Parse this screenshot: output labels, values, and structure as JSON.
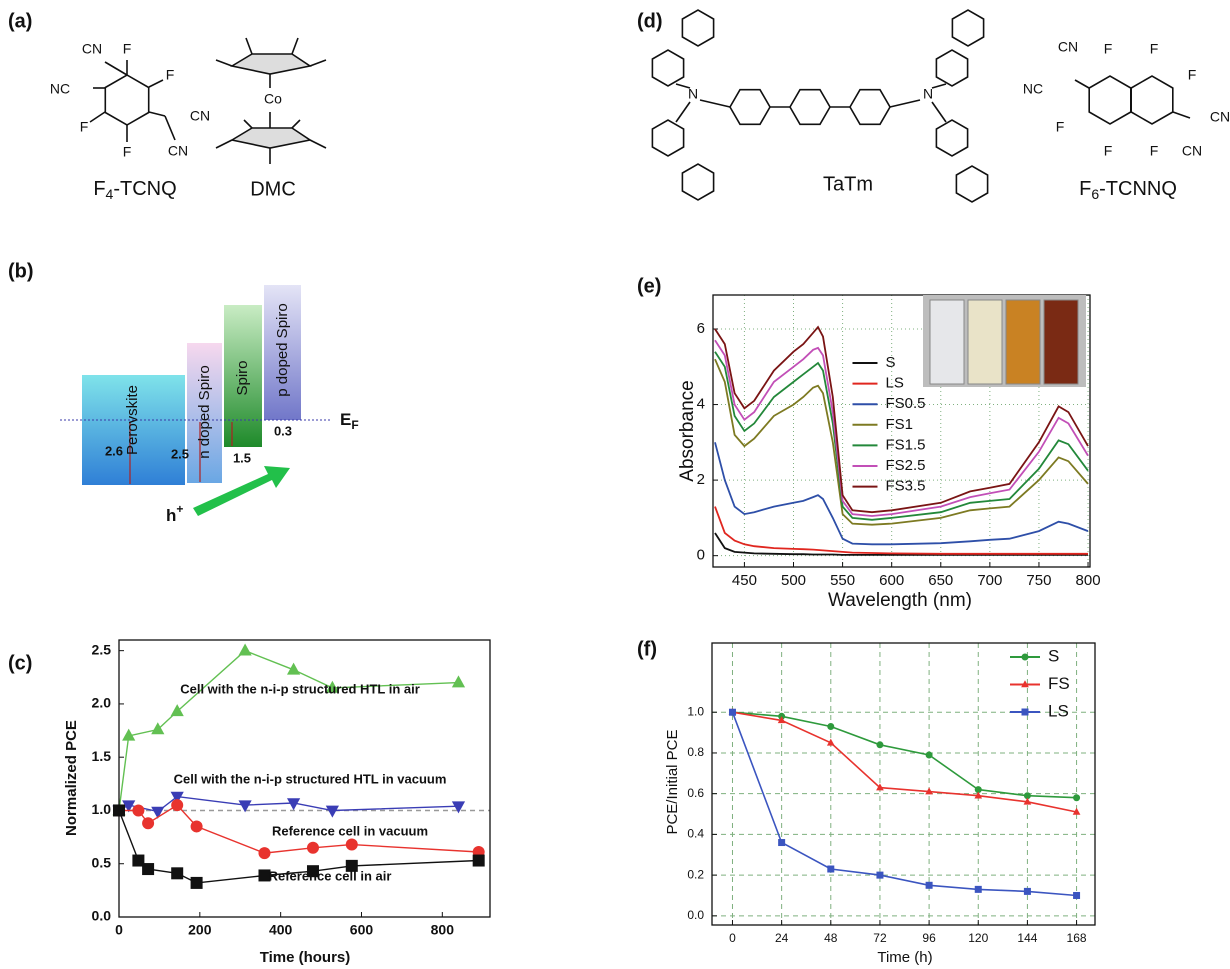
{
  "panel_labels": [
    "(a)",
    "(b)",
    "(c)",
    "(d)",
    "(e)",
    "(f)"
  ],
  "molecules": [
    {
      "name_parts": [
        "F",
        "4",
        "-TCNQ"
      ],
      "atoms": [
        "CN",
        "F",
        "F",
        "NC",
        "CN",
        "F",
        "F",
        "CN"
      ]
    },
    {
      "name_parts": [
        "DMC"
      ],
      "atoms": [
        "Co"
      ]
    },
    {
      "name_parts": [
        "TaTm"
      ],
      "atoms": [
        "N",
        "N"
      ]
    },
    {
      "name_parts": [
        "F",
        "6",
        "-TCNNQ"
      ],
      "atoms": [
        "CN",
        "F",
        "F",
        "F",
        "NC",
        "CN",
        "F",
        "F",
        "F",
        "CN"
      ]
    }
  ],
  "energy_diagram": {
    "layers": [
      "Perovskite",
      "n doped Spiro",
      "Spiro",
      "p doped Spiro"
    ],
    "depths": [
      "2.6",
      "2.5",
      "1.5",
      "0.3"
    ],
    "fermi_label": [
      "E",
      "F"
    ],
    "carrier": [
      "h",
      "+"
    ]
  },
  "chart_data": [
    {
      "type": "line",
      "xlabel": "Time (hours)",
      "ylabel": "Normalized PCE",
      "xlim": [
        0,
        918
      ],
      "ylim": [
        0,
        2.6
      ],
      "xticks": [
        0,
        200,
        400,
        600,
        800
      ],
      "yticks": [
        {
          "value": 0,
          "label": "0.0"
        },
        {
          "value": 0.5,
          "label": "0.5"
        },
        {
          "value": 1,
          "label": "1.0"
        },
        {
          "value": 1.5,
          "label": "1.5"
        },
        {
          "value": 2,
          "label": "2.0"
        },
        {
          "value": 2.5,
          "label": "2.5"
        }
      ],
      "grid": "none",
      "hline": 1.0,
      "legend": "inline",
      "series": [
        {
          "name": "Cell with the n-i-p structured HTL in air",
          "color": "#62c052",
          "marker": "triangle-up",
          "x": [
            0,
            24,
            96,
            144,
            312,
            432,
            528,
            840
          ],
          "values": [
            1.0,
            1.7,
            1.76,
            1.93,
            2.5,
            2.32,
            2.15,
            2.2
          ]
        },
        {
          "name": "Cell with the n-i-p structured HTL in vacuum",
          "color": "#3a3db5",
          "marker": "triangle-down",
          "x": [
            0,
            24,
            96,
            144,
            312,
            432,
            528,
            840
          ],
          "values": [
            1.0,
            1.05,
            0.99,
            1.13,
            1.05,
            1.07,
            1.0,
            1.04
          ]
        },
        {
          "name": "Reference cell in vacuum",
          "color": "#e8332e",
          "marker": "circle",
          "x": [
            0,
            48,
            72,
            144,
            192,
            360,
            480,
            576,
            890
          ],
          "values": [
            1.0,
            1.0,
            0.88,
            1.05,
            0.85,
            0.6,
            0.65,
            0.68,
            0.61
          ]
        },
        {
          "name": "Reference cell in air",
          "color": "#111111",
          "marker": "square",
          "x": [
            0,
            48,
            72,
            144,
            192,
            360,
            480,
            576,
            890
          ],
          "values": [
            1.0,
            0.53,
            0.45,
            0.41,
            0.32,
            0.39,
            0.43,
            0.48,
            0.53
          ]
        }
      ]
    },
    {
      "type": "line",
      "xlabel": "Wavelength (nm)",
      "ylabel": "Absorbance",
      "xlim": [
        418,
        802
      ],
      "ylim": [
        -0.3,
        6.9
      ],
      "xticks": [
        450,
        500,
        550,
        600,
        650,
        700,
        750,
        800
      ],
      "yticks": [
        0,
        2,
        4,
        6
      ],
      "grid": "dotted",
      "legend": "upper center",
      "legend_text": "colored",
      "x": [
        420,
        430,
        440,
        450,
        460,
        480,
        500,
        510,
        520,
        525,
        530,
        540,
        550,
        560,
        580,
        600,
        650,
        680,
        700,
        720,
        750,
        770,
        780,
        800
      ],
      "series": [
        {
          "name": "S",
          "color": "#111111",
          "values": [
            0.6,
            0.2,
            0.1,
            0.08,
            0.06,
            0.05,
            0.04,
            0.04,
            0.03,
            0.03,
            0.03,
            0.03,
            0.02,
            0.02,
            0.02,
            0.02,
            0.02,
            0.02,
            0.02,
            0.02,
            0.02,
            0.02,
            0.02,
            0.02
          ]
        },
        {
          "name": "LS",
          "color": "#e0261f",
          "values": [
            1.3,
            0.6,
            0.4,
            0.3,
            0.25,
            0.2,
            0.18,
            0.17,
            0.16,
            0.15,
            0.14,
            0.12,
            0.1,
            0.08,
            0.07,
            0.06,
            0.05,
            0.05,
            0.05,
            0.05,
            0.05,
            0.05,
            0.05,
            0.05
          ]
        },
        {
          "name": "FS0.5",
          "color": "#2e4fa8",
          "values": [
            3.0,
            2.0,
            1.3,
            1.1,
            1.15,
            1.3,
            1.4,
            1.45,
            1.55,
            1.6,
            1.5,
            1.0,
            0.45,
            0.32,
            0.3,
            0.3,
            0.33,
            0.38,
            0.42,
            0.45,
            0.65,
            0.9,
            0.85,
            0.65
          ]
        },
        {
          "name": "FS1",
          "color": "#7d7a22",
          "values": [
            5.2,
            4.6,
            3.2,
            2.9,
            3.1,
            3.7,
            4.0,
            4.2,
            4.45,
            4.5,
            4.3,
            3.0,
            1.1,
            0.85,
            0.82,
            0.85,
            1.0,
            1.2,
            1.25,
            1.3,
            2.0,
            2.6,
            2.5,
            1.9
          ]
        },
        {
          "name": "FS1.5",
          "color": "#23883a",
          "values": [
            5.4,
            5.0,
            3.7,
            3.3,
            3.5,
            4.2,
            4.6,
            4.8,
            5.0,
            5.1,
            4.9,
            3.5,
            1.3,
            1.0,
            0.95,
            1.0,
            1.15,
            1.4,
            1.45,
            1.5,
            2.3,
            3.05,
            2.95,
            2.25
          ]
        },
        {
          "name": "FS2.5",
          "color": "#c24fb7",
          "values": [
            5.7,
            5.3,
            4.0,
            3.6,
            3.8,
            4.6,
            5.0,
            5.2,
            5.45,
            5.5,
            5.3,
            3.8,
            1.45,
            1.1,
            1.05,
            1.1,
            1.3,
            1.55,
            1.65,
            1.75,
            2.75,
            3.65,
            3.5,
            2.65
          ]
        },
        {
          "name": "FS3.5",
          "color": "#7a1414",
          "values": [
            6.0,
            5.6,
            4.3,
            3.9,
            4.1,
            4.9,
            5.4,
            5.6,
            5.9,
            6.05,
            5.8,
            4.2,
            1.6,
            1.2,
            1.15,
            1.2,
            1.4,
            1.7,
            1.8,
            1.9,
            3.0,
            3.95,
            3.8,
            2.9
          ]
        }
      ]
    },
    {
      "type": "line",
      "xlabel": "Time (h)",
      "ylabel": "PCE/Initial PCE",
      "xlim": [
        -10,
        177
      ],
      "ylim": [
        -0.045,
        1.34
      ],
      "xticks": [
        0,
        24,
        48,
        72,
        96,
        120,
        144,
        168
      ],
      "yticks": [
        {
          "value": 0,
          "label": "0.0"
        },
        {
          "value": 0.2,
          "label": "0.2"
        },
        {
          "value": 0.4,
          "label": "0.4"
        },
        {
          "value": 0.6,
          "label": "0.6"
        },
        {
          "value": 0.8,
          "label": "0.8"
        },
        {
          "value": 1,
          "label": "1.0"
        }
      ],
      "grid": "dashed",
      "legend": "upper right",
      "legend_text": "black",
      "x": [
        0,
        24,
        48,
        72,
        96,
        120,
        144,
        168
      ],
      "series": [
        {
          "name": "S",
          "color": "#2e9a3c",
          "marker": "circle",
          "values": [
            1.0,
            0.98,
            0.93,
            0.84,
            0.79,
            0.62,
            0.59,
            0.58
          ]
        },
        {
          "name": "FS",
          "color": "#e8332e",
          "marker": "triangle-up",
          "values": [
            1.0,
            0.96,
            0.85,
            0.63,
            0.61,
            0.59,
            0.56,
            0.51
          ]
        },
        {
          "name": "LS",
          "color": "#3b55c0",
          "marker": "square",
          "values": [
            1.0,
            0.36,
            0.23,
            0.2,
            0.15,
            0.13,
            0.12,
            0.1
          ]
        }
      ]
    }
  ]
}
